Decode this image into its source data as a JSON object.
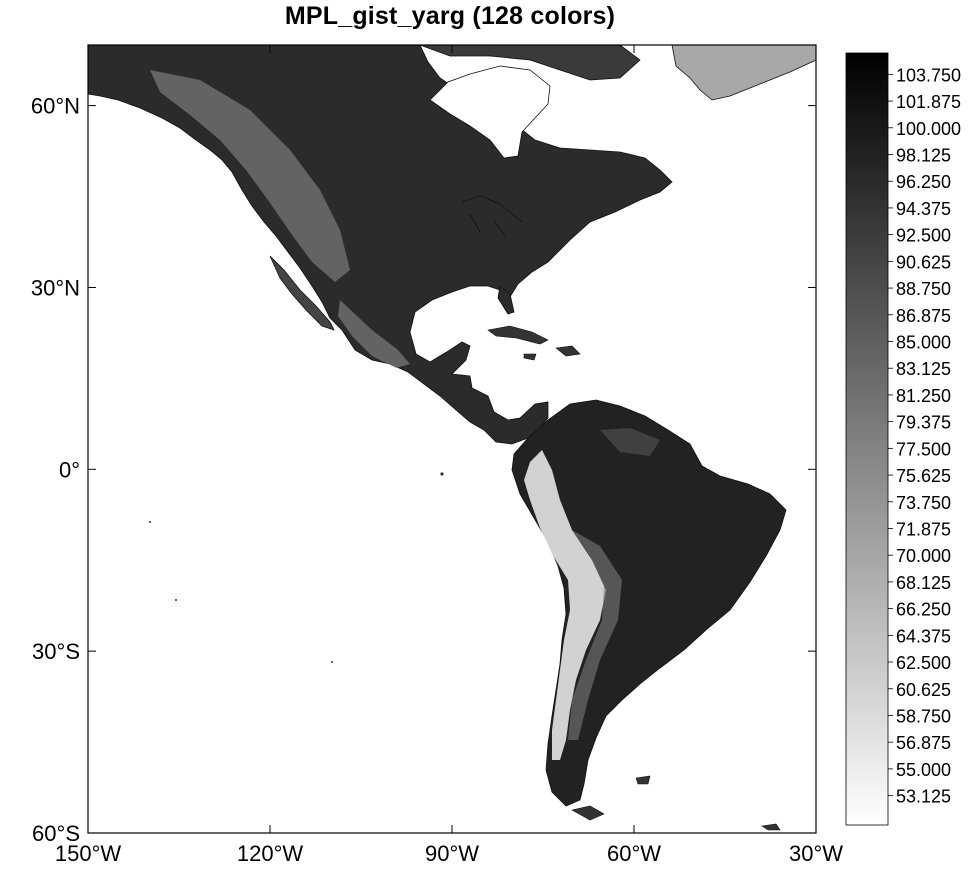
{
  "title": "MPL_gist_yarg (128 colors)",
  "colors": {
    "background": "#ffffff",
    "land_dark": "#1a1a1a",
    "land_mid": "#2e2e2e",
    "mountains_light": "#d9d9d9",
    "ocean": "#ffffff",
    "frame": "#000000"
  },
  "map": {
    "lon_ticks": [
      "150°W",
      "120°W",
      "90°W",
      "60°W",
      "30°W"
    ],
    "lat_ticks": [
      "60°N",
      "30°N",
      "0°",
      "30°S",
      "60°S"
    ],
    "lon_range": [
      -150,
      -30
    ],
    "lat_range": [
      -60,
      70
    ]
  },
  "colorbar": {
    "labels": [
      "103.750",
      "101.875",
      "100.000",
      "98.125",
      "96.250",
      "94.375",
      "92.500",
      "90.625",
      "88.750",
      "86.875",
      "85.000",
      "83.125",
      "81.250",
      "79.375",
      "77.500",
      "75.625",
      "73.750",
      "71.875",
      "70.000",
      "68.125",
      "66.250",
      "64.375",
      "62.500",
      "60.625",
      "58.750",
      "56.875",
      "55.000",
      "53.125"
    ],
    "top_color": "#000000",
    "bottom_color": "#ffffff"
  }
}
